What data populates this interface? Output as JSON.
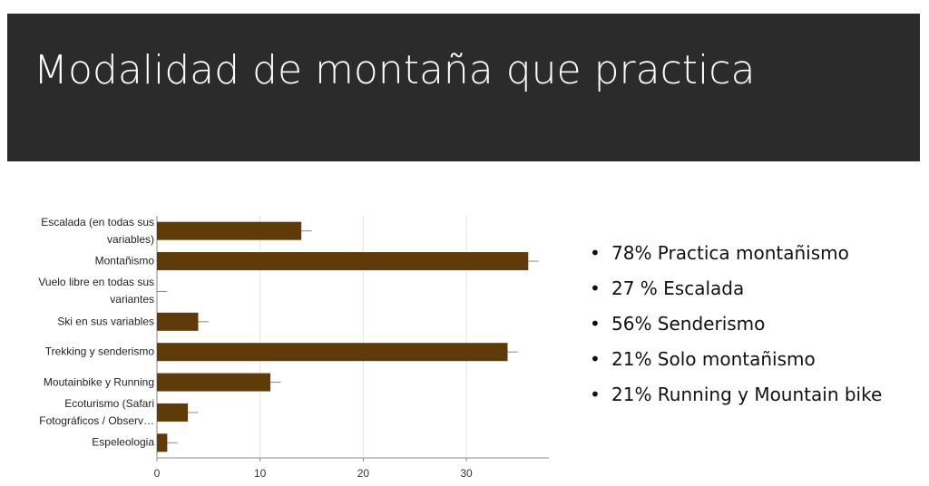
{
  "title": "Modalidad de montaña que practica",
  "chart_data": {
    "type": "bar",
    "categories": [
      "Escalada (en todas sus variables)",
      "Montañismo",
      "Vuelo libre en todas sus variantes",
      "Ski en sus variables",
      "Trekking y senderismo",
      "Moutainbike y Running",
      "Ecoturismo (Safari Fotográficos / Observ…",
      "Espeleologia"
    ],
    "values": [
      14,
      36,
      0,
      4,
      34,
      11,
      3,
      1
    ],
    "errors": [
      1,
      1,
      1,
      1,
      1,
      1,
      1,
      1
    ],
    "color": "#5f3b0a",
    "xlim": [
      0,
      38
    ],
    "xticks": [
      0,
      10,
      20,
      30
    ],
    "grid": true
  },
  "bullets": [
    "78% Practica montañismo",
    "27 % Escalada",
    "56% Senderismo",
    "21% Solo montañismo",
    "21% Running y Mountain bike"
  ]
}
